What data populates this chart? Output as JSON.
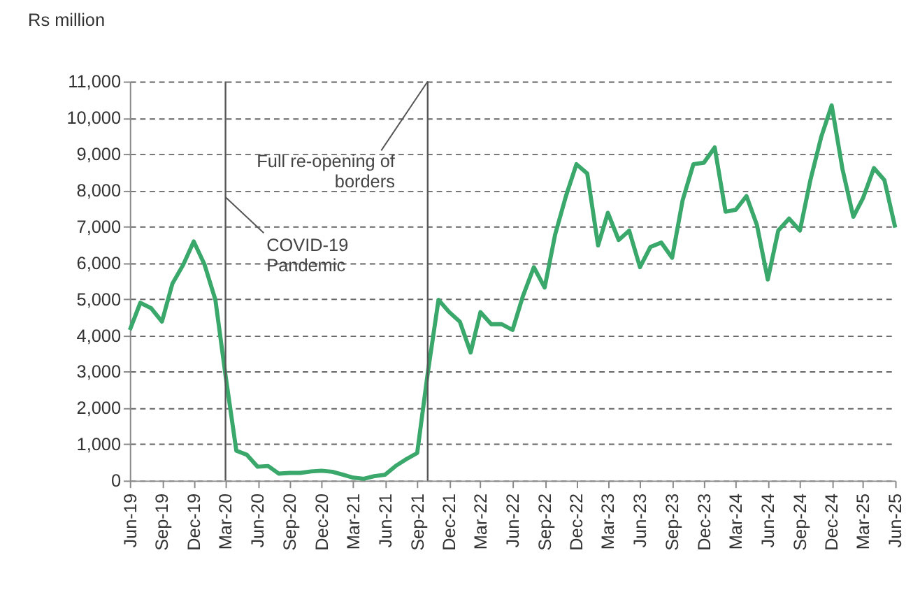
{
  "chart_data": {
    "type": "line",
    "ylabel": "Rs million",
    "x": [
      "2019-06",
      "2019-07",
      "2019-08",
      "2019-09",
      "2019-10",
      "2019-11",
      "2019-12",
      "2020-01",
      "2020-02",
      "2020-03",
      "2020-04",
      "2020-05",
      "2020-06",
      "2020-07",
      "2020-08",
      "2020-09",
      "2020-10",
      "2020-11",
      "2020-12",
      "2021-01",
      "2021-02",
      "2021-03",
      "2021-04",
      "2021-05",
      "2021-06",
      "2021-07",
      "2021-08",
      "2021-09",
      "2021-10",
      "2021-11",
      "2021-12",
      "2022-01",
      "2022-02",
      "2022-03",
      "2022-04",
      "2022-05",
      "2022-06",
      "2022-07",
      "2022-08",
      "2022-09",
      "2022-10",
      "2022-11",
      "2022-12",
      "2023-01",
      "2023-02",
      "2023-03",
      "2023-04",
      "2023-05",
      "2023-06",
      "2023-07",
      "2023-08",
      "2023-09",
      "2023-10",
      "2023-11",
      "2023-12",
      "2024-01",
      "2024-02",
      "2024-03",
      "2024-04",
      "2024-05",
      "2024-06",
      "2024-07",
      "2024-08",
      "2024-09",
      "2024-10",
      "2024-11",
      "2024-12",
      "2025-01",
      "2025-02",
      "2025-03",
      "2025-04",
      "2025-05",
      "2025-06"
    ],
    "series": [
      {
        "color": "#3aa86b",
        "values": [
          4150,
          4900,
          4750,
          4380,
          5430,
          5950,
          6590,
          5950,
          4980,
          2900,
          820,
          710,
          380,
          400,
          190,
          210,
          210,
          250,
          270,
          240,
          160,
          80,
          50,
          120,
          160,
          400,
          590,
          760,
          2950,
          4980,
          4650,
          4380,
          3530,
          4640,
          4310,
          4310,
          4150,
          5090,
          5880,
          5320,
          6780,
          7840,
          8720,
          8460,
          6480,
          7380,
          6630,
          6890,
          5880,
          6440,
          6560,
          6140,
          7720,
          8720,
          8760,
          9180,
          7410,
          7460,
          7840,
          7040,
          5540,
          6890,
          7220,
          6890,
          8280,
          9470,
          10340,
          8580,
          7270,
          7790,
          8610,
          8280,
          6970
        ]
      }
    ],
    "xlim": [
      "2019-06",
      "2025-06"
    ],
    "xticks": [
      {
        "value": "2019-06",
        "label": "Jun-19"
      },
      {
        "value": "2019-09",
        "label": "Sep-19"
      },
      {
        "value": "2019-12",
        "label": "Dec-19"
      },
      {
        "value": "2020-03",
        "label": "Mar-20"
      },
      {
        "value": "2020-06",
        "label": "Jun-20"
      },
      {
        "value": "2020-09",
        "label": "Sep-20"
      },
      {
        "value": "2020-12",
        "label": "Dec-20"
      },
      {
        "value": "2021-03",
        "label": "Mar-21"
      },
      {
        "value": "2021-06",
        "label": "Jun-21"
      },
      {
        "value": "2021-09",
        "label": "Sep-21"
      },
      {
        "value": "2021-12",
        "label": "Dec-21"
      },
      {
        "value": "2022-03",
        "label": "Mar-22"
      },
      {
        "value": "2022-06",
        "label": "Jun-22"
      },
      {
        "value": "2022-09",
        "label": "Sep-22"
      },
      {
        "value": "2022-12",
        "label": "Dec-22"
      },
      {
        "value": "2023-03",
        "label": "Mar-23"
      },
      {
        "value": "2023-06",
        "label": "Jun-23"
      },
      {
        "value": "2023-09",
        "label": "Sep-23"
      },
      {
        "value": "2023-12",
        "label": "Dec-23"
      },
      {
        "value": "2024-03",
        "label": "Mar-24"
      },
      {
        "value": "2024-06",
        "label": "Jun-24"
      },
      {
        "value": "2024-09",
        "label": "Sep-24"
      },
      {
        "value": "2024-12",
        "label": "Dec-24"
      },
      {
        "value": "2025-03",
        "label": "Mar-25"
      },
      {
        "value": "2025-06",
        "label": "Jun-25"
      }
    ],
    "ylim": [
      0,
      11000
    ],
    "yticks": [
      {
        "value": 0,
        "label": "0"
      },
      {
        "value": 1000,
        "label": "1,000"
      },
      {
        "value": 2000,
        "label": "2,000"
      },
      {
        "value": 3000,
        "label": "3,000"
      },
      {
        "value": 4000,
        "label": "4,000"
      },
      {
        "value": 5000,
        "label": "5,000"
      },
      {
        "value": 6000,
        "label": "6,000"
      },
      {
        "value": 7000,
        "label": "7,000"
      },
      {
        "value": 8000,
        "label": "8,000"
      },
      {
        "value": 9000,
        "label": "9,000"
      },
      {
        "value": 10000,
        "label": "10,000"
      },
      {
        "value": 11000,
        "label": "11,000"
      }
    ],
    "grid": "y",
    "legend": false,
    "marker": "none",
    "line_style": "solid",
    "ref_lines": [
      {
        "axis": "x",
        "value": "2020-03",
        "label": "COVID-19\nPandemic",
        "color": "#555555"
      },
      {
        "axis": "x",
        "value": "2021-10",
        "label": "Full re-opening of\nborders",
        "color": "#555555"
      }
    ]
  }
}
